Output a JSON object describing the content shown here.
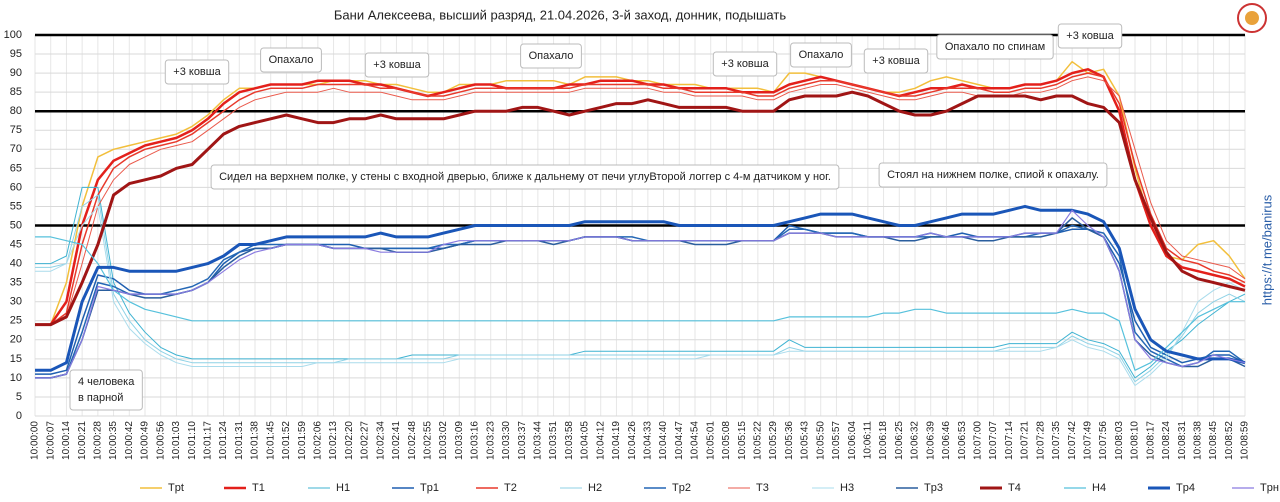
{
  "chart_data": {
    "type": "line",
    "title": "Бани Алексеева, высший разряд, 21.04.2026, 3-й заход, донник, подышать",
    "categories": [
      "10:00:00",
      "10:00:07",
      "10:00:14",
      "10:00:21",
      "10:00:28",
      "10:00:35",
      "10:00:42",
      "10:00:49",
      "10:00:56",
      "10:01:03",
      "10:01:10",
      "10:01:17",
      "10:01:24",
      "10:01:31",
      "10:01:38",
      "10:01:45",
      "10:01:52",
      "10:01:59",
      "10:02:06",
      "10:02:13",
      "10:02:20",
      "10:02:27",
      "10:02:34",
      "10:02:41",
      "10:02:48",
      "10:02:55",
      "10:03:02",
      "10:03:09",
      "10:03:16",
      "10:03:23",
      "10:03:30",
      "10:03:37",
      "10:03:44",
      "10:03:51",
      "10:03:58",
      "10:04:05",
      "10:04:12",
      "10:04:19",
      "10:04:26",
      "10:04:33",
      "10:04:40",
      "10:04:47",
      "10:04:54",
      "10:05:01",
      "10:05:08",
      "10:05:15",
      "10:05:22",
      "10:05:29",
      "10:05:36",
      "10:05:43",
      "10:05:50",
      "10:05:57",
      "10:06:04",
      "10:06:11",
      "10:06:18",
      "10:06:25",
      "10:06:32",
      "10:06:39",
      "10:06:46",
      "10:06:53",
      "10:07:00",
      "10:07:07",
      "10:07:14",
      "10:07:21",
      "10:07:28",
      "10:07:35",
      "10:07:42",
      "10:07:49",
      "10:07:56",
      "10:08:03",
      "10:08:10",
      "10:08:17",
      "10:08:24",
      "10:08:31",
      "10:08:38",
      "10:08:45",
      "10:08:52",
      "10:08:59"
    ],
    "ylim": [
      0,
      100
    ],
    "yticks": [
      0,
      5,
      10,
      15,
      20,
      25,
      30,
      35,
      40,
      45,
      50,
      55,
      60,
      65,
      70,
      75,
      80,
      85,
      90,
      95,
      100
    ],
    "grid": true,
    "reference_lines": [
      50,
      80,
      100
    ],
    "legend": "bottom",
    "series": [
      {
        "name": "Tpt",
        "color": "#f2bf3c",
        "width": 1.5,
        "values": [
          24,
          24,
          35,
          55,
          68,
          70,
          71,
          72,
          73,
          74,
          76,
          79,
          83,
          86,
          86,
          87,
          87,
          87,
          87,
          88,
          88,
          88,
          87,
          87,
          86,
          85,
          85,
          87,
          87,
          87,
          88,
          88,
          88,
          88,
          87,
          89,
          89,
          89,
          88,
          88,
          87,
          87,
          87,
          86,
          86,
          86,
          86,
          85,
          90,
          90,
          89,
          88,
          87,
          86,
          85,
          85,
          86,
          88,
          89,
          88,
          87,
          86,
          86,
          87,
          87,
          88,
          93,
          90,
          91,
          84,
          65,
          50,
          42,
          41,
          45,
          46,
          42,
          36
        ]
      },
      {
        "name": "T1",
        "color": "#e3201b",
        "width": 2.5,
        "values": [
          24,
          24,
          30,
          50,
          62,
          67,
          69,
          71,
          72,
          73,
          75,
          78,
          82,
          85,
          86,
          87,
          87,
          87,
          88,
          88,
          88,
          87,
          87,
          86,
          85,
          84,
          85,
          86,
          87,
          87,
          86,
          86,
          86,
          86,
          87,
          87,
          88,
          88,
          88,
          87,
          87,
          86,
          86,
          86,
          86,
          85,
          85,
          85,
          87,
          88,
          89,
          88,
          87,
          86,
          85,
          84,
          85,
          86,
          86,
          87,
          86,
          86,
          86,
          87,
          87,
          88,
          90,
          91,
          89,
          80,
          62,
          50,
          42,
          39,
          38,
          37,
          36,
          34
        ]
      },
      {
        "name": "H1",
        "color": "#3fb3d2",
        "width": 1,
        "values": [
          40,
          40,
          42,
          60,
          60,
          35,
          27,
          22,
          18,
          16,
          15,
          15,
          15,
          15,
          15,
          15,
          15,
          15,
          15,
          15,
          15,
          15,
          15,
          15,
          16,
          16,
          16,
          16,
          16,
          16,
          16,
          16,
          16,
          16,
          16,
          17,
          17,
          17,
          17,
          17,
          17,
          17,
          17,
          17,
          17,
          17,
          17,
          17,
          20,
          18,
          18,
          18,
          18,
          18,
          18,
          18,
          18,
          18,
          18,
          18,
          18,
          18,
          19,
          19,
          19,
          19,
          22,
          20,
          19,
          17,
          10,
          13,
          17,
          20,
          24,
          27,
          30,
          32
        ]
      },
      {
        "name": "Tp1",
        "color": "#1f5fb0",
        "width": 1.5,
        "values": [
          11,
          11,
          12,
          25,
          37,
          36,
          33,
          32,
          32,
          32,
          33,
          35,
          40,
          43,
          44,
          44,
          45,
          45,
          45,
          45,
          45,
          44,
          44,
          44,
          44,
          44,
          44,
          45,
          46,
          46,
          46,
          46,
          46,
          46,
          46,
          47,
          47,
          47,
          46,
          46,
          46,
          46,
          46,
          46,
          46,
          46,
          46,
          46,
          50,
          49,
          48,
          48,
          48,
          47,
          47,
          47,
          47,
          47,
          47,
          48,
          47,
          47,
          47,
          48,
          48,
          48,
          49,
          49,
          47,
          40,
          25,
          18,
          16,
          14,
          15,
          16,
          16,
          14
        ]
      },
      {
        "name": "T2",
        "color": "#e8392b",
        "width": 1.5,
        "values": [
          24,
          24,
          27,
          45,
          58,
          65,
          68,
          70,
          71,
          72,
          74,
          77,
          80,
          83,
          85,
          86,
          86,
          86,
          87,
          87,
          87,
          87,
          86,
          86,
          85,
          84,
          84,
          85,
          86,
          86,
          86,
          86,
          86,
          86,
          86,
          87,
          87,
          87,
          87,
          87,
          86,
          86,
          85,
          85,
          85,
          85,
          84,
          84,
          86,
          87,
          88,
          88,
          87,
          86,
          85,
          84,
          84,
          85,
          86,
          86,
          86,
          85,
          85,
          86,
          86,
          87,
          89,
          90,
          89,
          82,
          66,
          53,
          44,
          41,
          40,
          38,
          37,
          35
        ]
      },
      {
        "name": "H2",
        "color": "#8fd2e6",
        "width": 1,
        "values": [
          39,
          39,
          40,
          55,
          58,
          32,
          25,
          20,
          17,
          15,
          14,
          14,
          14,
          14,
          14,
          14,
          14,
          14,
          14,
          14,
          15,
          15,
          15,
          15,
          15,
          15,
          15,
          16,
          16,
          16,
          16,
          16,
          16,
          16,
          16,
          16,
          16,
          16,
          16,
          16,
          16,
          16,
          16,
          16,
          16,
          16,
          16,
          16,
          18,
          17,
          17,
          17,
          17,
          17,
          17,
          17,
          17,
          17,
          17,
          17,
          17,
          17,
          18,
          18,
          18,
          18,
          21,
          19,
          18,
          16,
          9,
          12,
          16,
          21,
          27,
          30,
          32,
          30
        ]
      },
      {
        "name": "Tp2",
        "color": "#2467b5",
        "width": 1.5,
        "values": [
          10,
          10,
          11,
          22,
          35,
          34,
          32,
          32,
          32,
          33,
          34,
          36,
          41,
          43,
          45,
          45,
          45,
          45,
          45,
          44,
          44,
          44,
          44,
          44,
          44,
          44,
          45,
          45,
          46,
          46,
          46,
          46,
          46,
          46,
          46,
          47,
          47,
          47,
          47,
          46,
          46,
          46,
          46,
          46,
          46,
          46,
          46,
          46,
          49,
          49,
          48,
          48,
          48,
          47,
          47,
          47,
          47,
          48,
          47,
          47,
          47,
          47,
          47,
          47,
          48,
          48,
          50,
          49,
          48,
          42,
          22,
          17,
          15,
          13,
          14,
          17,
          17,
          14
        ]
      },
      {
        "name": "T3",
        "color": "#ea5a4c",
        "width": 1,
        "values": [
          24,
          24,
          26,
          40,
          55,
          62,
          66,
          68,
          70,
          71,
          72,
          75,
          78,
          81,
          83,
          84,
          85,
          85,
          85,
          86,
          85,
          85,
          85,
          84,
          83,
          83,
          83,
          84,
          85,
          85,
          85,
          85,
          85,
          85,
          85,
          86,
          86,
          86,
          86,
          86,
          85,
          85,
          84,
          84,
          84,
          84,
          83,
          83,
          85,
          86,
          87,
          87,
          86,
          85,
          84,
          83,
          83,
          84,
          85,
          85,
          84,
          84,
          84,
          85,
          85,
          86,
          88,
          89,
          88,
          84,
          70,
          56,
          46,
          42,
          41,
          40,
          39,
          36
        ]
      },
      {
        "name": "H3",
        "color": "#aadcec",
        "width": 1,
        "values": [
          38,
          38,
          40,
          50,
          55,
          30,
          23,
          19,
          16,
          14,
          13,
          13,
          13,
          13,
          13,
          13,
          13,
          13,
          14,
          14,
          14,
          14,
          14,
          14,
          14,
          14,
          14,
          15,
          15,
          15,
          15,
          15,
          15,
          15,
          15,
          15,
          15,
          15,
          15,
          15,
          15,
          15,
          15,
          16,
          16,
          16,
          16,
          16,
          17,
          17,
          17,
          17,
          17,
          17,
          17,
          17,
          17,
          17,
          17,
          17,
          17,
          17,
          17,
          17,
          17,
          18,
          20,
          18,
          17,
          15,
          8,
          11,
          15,
          22,
          30,
          33,
          35,
          33
        ]
      },
      {
        "name": "Tp3",
        "color": "#2a5e9e",
        "width": 1.5,
        "values": [
          10,
          10,
          11,
          20,
          33,
          33,
          32,
          31,
          31,
          32,
          33,
          35,
          39,
          42,
          44,
          44,
          45,
          45,
          45,
          44,
          44,
          44,
          44,
          43,
          43,
          43,
          44,
          45,
          45,
          45,
          46,
          46,
          46,
          45,
          46,
          47,
          47,
          47,
          46,
          46,
          46,
          46,
          45,
          45,
          45,
          46,
          46,
          46,
          48,
          48,
          48,
          47,
          47,
          47,
          47,
          46,
          46,
          47,
          47,
          47,
          46,
          46,
          47,
          47,
          47,
          48,
          52,
          49,
          47,
          38,
          20,
          16,
          14,
          13,
          13,
          15,
          15,
          13
        ]
      },
      {
        "name": "T4",
        "color": "#a01515",
        "width": 3,
        "values": [
          24,
          24,
          26,
          35,
          45,
          58,
          61,
          62,
          63,
          65,
          66,
          70,
          74,
          76,
          77,
          78,
          79,
          78,
          77,
          77,
          78,
          78,
          79,
          78,
          78,
          78,
          78,
          79,
          80,
          80,
          80,
          81,
          81,
          80,
          79,
          80,
          81,
          82,
          82,
          83,
          82,
          81,
          81,
          81,
          81,
          80,
          80,
          80,
          83,
          84,
          84,
          84,
          85,
          84,
          82,
          80,
          79,
          79,
          80,
          82,
          84,
          84,
          84,
          84,
          83,
          84,
          84,
          82,
          81,
          77,
          62,
          52,
          43,
          38,
          36,
          35,
          34,
          33
        ]
      },
      {
        "name": "H4",
        "color": "#56c1dc",
        "width": 1.2,
        "values": [
          47,
          47,
          46,
          45,
          40,
          33,
          30,
          28,
          27,
          26,
          25,
          25,
          25,
          25,
          25,
          25,
          25,
          25,
          25,
          25,
          25,
          25,
          25,
          25,
          25,
          25,
          25,
          25,
          25,
          25,
          25,
          25,
          25,
          25,
          25,
          25,
          25,
          25,
          25,
          25,
          25,
          25,
          25,
          25,
          25,
          25,
          25,
          25,
          26,
          26,
          26,
          26,
          26,
          26,
          27,
          27,
          28,
          28,
          27,
          27,
          27,
          27,
          27,
          27,
          27,
          27,
          28,
          27,
          27,
          25,
          12,
          14,
          18,
          22,
          26,
          28,
          30,
          30
        ]
      },
      {
        "name": "Tp4",
        "color": "#1a56b8",
        "width": 3,
        "values": [
          12,
          12,
          14,
          30,
          39,
          39,
          38,
          38,
          38,
          38,
          39,
          40,
          42,
          45,
          45,
          46,
          47,
          47,
          47,
          47,
          47,
          47,
          48,
          47,
          47,
          47,
          48,
          49,
          50,
          50,
          50,
          50,
          50,
          50,
          50,
          51,
          51,
          51,
          51,
          51,
          51,
          50,
          50,
          50,
          50,
          50,
          50,
          50,
          51,
          52,
          53,
          53,
          53,
          52,
          51,
          50,
          50,
          51,
          52,
          53,
          53,
          53,
          54,
          55,
          54,
          54,
          54,
          53,
          51,
          44,
          28,
          20,
          17,
          16,
          15,
          15,
          15,
          14
        ]
      },
      {
        "name": "Tpн",
        "color": "#8a7be0",
        "width": 1.2,
        "values": [
          10,
          10,
          11,
          20,
          34,
          33,
          32,
          32,
          32,
          32,
          33,
          35,
          38,
          41,
          43,
          44,
          45,
          45,
          45,
          44,
          44,
          44,
          43,
          43,
          43,
          43,
          45,
          46,
          46,
          46,
          46,
          46,
          46,
          46,
          46,
          47,
          47,
          47,
          46,
          46,
          46,
          46,
          46,
          46,
          46,
          46,
          46,
          46,
          48,
          48,
          48,
          47,
          47,
          47,
          47,
          47,
          47,
          48,
          47,
          47,
          47,
          47,
          47,
          48,
          48,
          48,
          54,
          50,
          47,
          38,
          20,
          15,
          14,
          13,
          14,
          16,
          15,
          14
        ]
      }
    ],
    "annotations": [
      [
        "+3 ковша"
      ],
      [
        "Опахало"
      ],
      [
        "+3 ковша"
      ],
      [
        "Опахало"
      ],
      [
        "+3 ковша"
      ],
      [
        "Опахало"
      ],
      [
        "+3 ковша"
      ],
      [
        "Опахало по спинам"
      ],
      [
        "+3 ковша"
      ],
      [
        "Сидел на верхнем полке, у стены с входной дверью, ближе к дальнему от печи углуВторой логгер с 4-м датчиком у ног."
      ],
      [
        "Стоял на нижнем полке, спиой к опахалу."
      ],
      [
        "4 человека",
        "в парной"
      ]
    ],
    "side_text": "https://t.me/banirus"
  }
}
